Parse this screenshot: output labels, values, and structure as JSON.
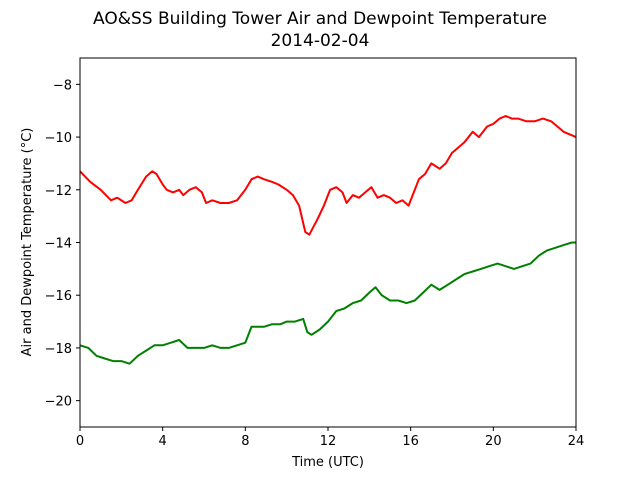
{
  "chart_data": {
    "type": "line",
    "title": "AO&SS Building Tower Air and Dewpoint Temperature",
    "subtitle": "2014-02-04",
    "xlabel": "Time (UTC)",
    "ylabel": "Air and Dewpoint Temperature (°C)",
    "xlim": [
      0,
      24
    ],
    "ylim": [
      -21,
      -7
    ],
    "xticks": [
      0,
      4,
      8,
      12,
      16,
      20,
      24
    ],
    "xtick_labels": [
      "0",
      "4",
      "8",
      "12",
      "16",
      "20",
      "24"
    ],
    "yticks": [
      -20,
      -18,
      -16,
      -14,
      -12,
      -10,
      -8
    ],
    "ytick_labels": [
      "−20",
      "−18",
      "−16",
      "−14",
      "−12",
      "−10",
      "−8"
    ],
    "grid": false,
    "series": [
      {
        "color": "#ff0000",
        "x": [
          0,
          0.5,
          1,
          1.5,
          1.8,
          2.2,
          2.5,
          2.8,
          3.2,
          3.5,
          3.7,
          4.0,
          4.2,
          4.5,
          4.8,
          5.0,
          5.3,
          5.6,
          5.9,
          6.1,
          6.4,
          6.8,
          7.2,
          7.6,
          8.0,
          8.3,
          8.6,
          8.9,
          9.3,
          9.6,
          10.0,
          10.3,
          10.6,
          10.9,
          11.1,
          11.3,
          11.5,
          11.8,
          12.1,
          12.4,
          12.7,
          12.9,
          13.2,
          13.5,
          13.8,
          14.1,
          14.4,
          14.7,
          15.0,
          15.3,
          15.6,
          15.9,
          16.2,
          16.4,
          16.7,
          17.0,
          17.4,
          17.7,
          18.0,
          18.3,
          18.6,
          19.0,
          19.3,
          19.7,
          20.0,
          20.3,
          20.6,
          20.9,
          21.2,
          21.6,
          22.0,
          22.4,
          22.8,
          23.1,
          23.4,
          23.7,
          24.0
        ],
        "values": [
          -11.3,
          -11.7,
          -12.0,
          -12.4,
          -12.3,
          -12.5,
          -12.4,
          -12.0,
          -11.5,
          -11.3,
          -11.4,
          -11.8,
          -12.0,
          -12.1,
          -12.0,
          -12.2,
          -12.0,
          -11.9,
          -12.1,
          -12.5,
          -12.4,
          -12.5,
          -12.5,
          -12.4,
          -12.0,
          -11.6,
          -11.5,
          -11.6,
          -11.7,
          -11.8,
          -12.0,
          -12.2,
          -12.6,
          -13.6,
          -13.7,
          -13.4,
          -13.1,
          -12.6,
          -12.0,
          -11.9,
          -12.1,
          -12.5,
          -12.2,
          -12.3,
          -12.1,
          -11.9,
          -12.3,
          -12.2,
          -12.3,
          -12.5,
          -12.4,
          -12.6,
          -12.0,
          -11.6,
          -11.4,
          -11.0,
          -11.2,
          -11.0,
          -10.6,
          -10.4,
          -10.2,
          -9.8,
          -10.0,
          -9.6,
          -9.5,
          -9.3,
          -9.2,
          -9.3,
          -9.3,
          -9.4,
          -9.4,
          -9.3,
          -9.4,
          -9.6,
          -9.8,
          -9.9,
          -10.0
        ]
      },
      {
        "color": "#008000",
        "x": [
          0,
          0.4,
          0.8,
          1.2,
          1.6,
          2.0,
          2.4,
          2.8,
          3.2,
          3.6,
          4.0,
          4.4,
          4.8,
          5.2,
          5.6,
          6.0,
          6.4,
          6.8,
          7.2,
          7.6,
          8.0,
          8.3,
          8.6,
          8.9,
          9.3,
          9.7,
          10.0,
          10.4,
          10.8,
          11.0,
          11.2,
          11.6,
          12.0,
          12.4,
          12.8,
          13.2,
          13.6,
          14.0,
          14.3,
          14.6,
          15.0,
          15.4,
          15.8,
          16.2,
          16.6,
          17.0,
          17.4,
          17.8,
          18.2,
          18.6,
          19.0,
          19.4,
          19.8,
          20.2,
          20.6,
          21.0,
          21.4,
          21.8,
          22.2,
          22.6,
          23.0,
          23.4,
          23.8,
          24.0
        ],
        "values": [
          -17.9,
          -18.0,
          -18.3,
          -18.4,
          -18.5,
          -18.5,
          -18.6,
          -18.3,
          -18.1,
          -17.9,
          -17.9,
          -17.8,
          -17.7,
          -18.0,
          -18.0,
          -18.0,
          -17.9,
          -18.0,
          -18.0,
          -17.9,
          -17.8,
          -17.2,
          -17.2,
          -17.2,
          -17.1,
          -17.1,
          -17.0,
          -17.0,
          -16.9,
          -17.4,
          -17.5,
          -17.3,
          -17.0,
          -16.6,
          -16.5,
          -16.3,
          -16.2,
          -15.9,
          -15.7,
          -16.0,
          -16.2,
          -16.2,
          -16.3,
          -16.2,
          -15.9,
          -15.6,
          -15.8,
          -15.6,
          -15.4,
          -15.2,
          -15.1,
          -15.0,
          -14.9,
          -14.8,
          -14.9,
          -15.0,
          -14.9,
          -14.8,
          -14.5,
          -14.3,
          -14.2,
          -14.1,
          -14.0,
          -14.0
        ]
      }
    ]
  }
}
